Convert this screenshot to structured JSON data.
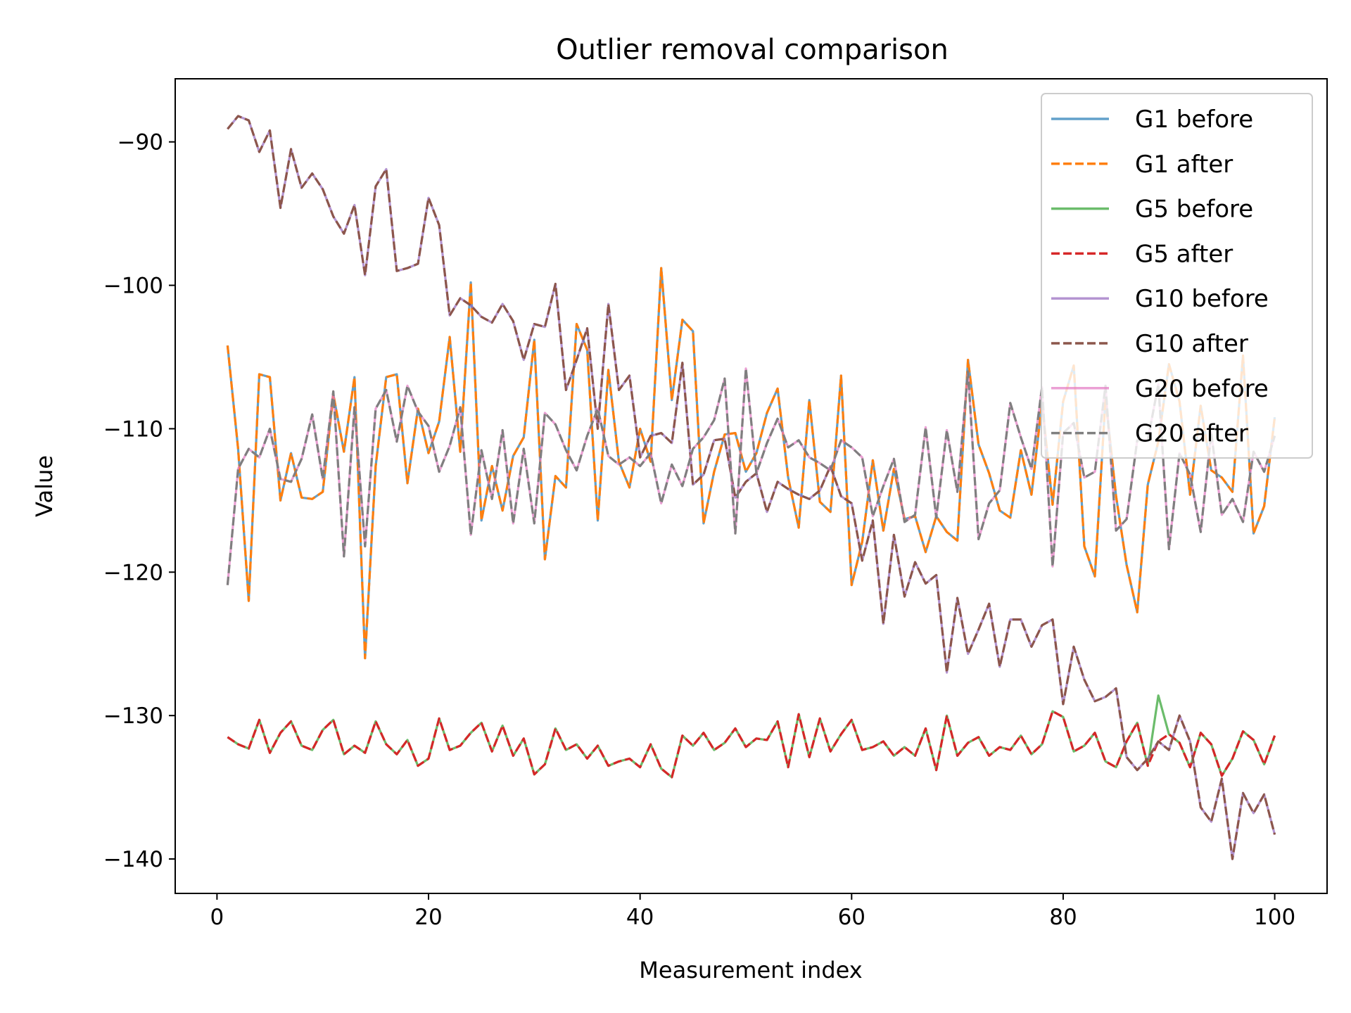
{
  "chart_data": {
    "type": "line",
    "title": "Outlier removal comparison",
    "xlabel": "Measurement index",
    "ylabel": "Value",
    "xlim": [
      -3.95,
      104.95
    ],
    "ylim": [
      -142.4,
      -85.6
    ],
    "xticks": [
      0,
      20,
      40,
      60,
      80,
      100
    ],
    "yticks": [
      -90,
      -100,
      -110,
      -120,
      -130,
      -140
    ],
    "tick_labels_x": [
      "0",
      "20",
      "40",
      "60",
      "80",
      "100"
    ],
    "tick_labels_y": [
      "−90",
      "−100",
      "−110",
      "−120",
      "−130",
      "−140"
    ],
    "grid": false,
    "legend_position": "top-right",
    "x": [
      1,
      2,
      3,
      4,
      5,
      6,
      7,
      8,
      9,
      10,
      11,
      12,
      13,
      14,
      15,
      16,
      17,
      18,
      19,
      20,
      21,
      22,
      23,
      24,
      25,
      26,
      27,
      28,
      29,
      30,
      31,
      32,
      33,
      34,
      35,
      36,
      37,
      38,
      39,
      40,
      41,
      42,
      43,
      44,
      45,
      46,
      47,
      48,
      49,
      50,
      51,
      52,
      53,
      54,
      55,
      56,
      57,
      58,
      59,
      60,
      61,
      62,
      63,
      64,
      65,
      66,
      67,
      68,
      69,
      70,
      71,
      72,
      73,
      74,
      75,
      76,
      77,
      78,
      79,
      80,
      81,
      82,
      83,
      84,
      85,
      86,
      87,
      88,
      89,
      90,
      91,
      92,
      93,
      94,
      95,
      96,
      97,
      98,
      99,
      100
    ],
    "series": [
      {
        "name": "G1 before",
        "color": "#1f77b4",
        "dash": "solid",
        "alpha": 0.7,
        "values": [
          -104.2,
          -111.4,
          -122.0,
          -106.2,
          -106.4,
          -115.0,
          -111.7,
          -114.8,
          -114.9,
          -114.4,
          -107.6,
          -111.6,
          -106.4,
          -126.0,
          -112.6,
          -106.4,
          -106.2,
          -113.8,
          -108.6,
          -111.7,
          -109.5,
          -103.6,
          -111.6,
          -99.8,
          -116.4,
          -112.6,
          -115.7,
          -111.9,
          -110.6,
          -103.8,
          -119.1,
          -113.3,
          -114.1,
          -102.7,
          -104.5,
          -116.4,
          -105.9,
          -112.3,
          -114.1,
          -110.0,
          -112.3,
          -98.8,
          -108.0,
          -102.4,
          -103.2,
          -116.6,
          -113.0,
          -110.4,
          -110.3,
          -113.0,
          -111.7,
          -108.9,
          -107.2,
          -113.4,
          -116.9,
          -108.0,
          -115.1,
          -115.8,
          -106.3,
          -120.9,
          -117.9,
          -112.2,
          -117.1,
          -112.8,
          -116.3,
          -116.1,
          -118.6,
          -116.1,
          -117.2,
          -117.8,
          -105.2,
          -111.1,
          -113.1,
          -115.7,
          -116.2,
          -111.5,
          -114.6,
          -108.2,
          -115.3,
          -108.1,
          -105.6,
          -118.2,
          -120.3,
          -107.9,
          -114.7,
          -119.5,
          -122.8,
          -113.9,
          -110.9,
          -105.5,
          -108.1,
          -114.6,
          -108.4,
          -112.9,
          -113.4,
          -114.4,
          -104.9,
          -117.3,
          -115.4,
          -109.2
        ]
      },
      {
        "name": "G1 after",
        "color": "#ff7f0e",
        "dash": "dashed",
        "alpha": 1,
        "values": [
          -104.2,
          -111.4,
          -122.0,
          -106.2,
          -106.4,
          -115.0,
          -111.7,
          -114.8,
          -114.9,
          -114.4,
          -107.6,
          -111.6,
          -106.4,
          -126.0,
          -112.6,
          -106.4,
          -106.2,
          -113.8,
          -108.6,
          -111.7,
          -109.5,
          -103.6,
          -111.6,
          -99.8,
          -116.4,
          -112.6,
          -115.7,
          -111.9,
          -110.6,
          -103.8,
          -119.1,
          -113.3,
          -114.1,
          -102.7,
          -104.5,
          -116.4,
          -105.9,
          -112.3,
          -114.1,
          -110.0,
          -112.3,
          -98.8,
          -108.0,
          -102.4,
          -103.2,
          -116.6,
          -113.0,
          -110.4,
          -110.3,
          -113.0,
          -111.7,
          -108.9,
          -107.2,
          -113.4,
          -116.9,
          -108.0,
          -115.1,
          -115.8,
          -106.3,
          -120.9,
          -117.9,
          -112.2,
          -117.1,
          -112.8,
          -116.3,
          -116.1,
          -118.6,
          -116.1,
          -117.2,
          -117.8,
          -105.2,
          -111.1,
          -113.1,
          -115.7,
          -116.2,
          -111.5,
          -114.6,
          -108.2,
          -115.3,
          -108.1,
          -105.6,
          -118.2,
          -120.3,
          -107.9,
          -114.7,
          -119.5,
          -122.8,
          -113.9,
          -110.9,
          -105.5,
          -108.1,
          -114.6,
          -108.4,
          -112.9,
          -113.4,
          -114.4,
          -104.9,
          -117.3,
          -115.4,
          -109.2
        ]
      },
      {
        "name": "G5 before",
        "color": "#2ca02c",
        "dash": "solid",
        "alpha": 0.7,
        "values": [
          -131.5,
          -132.0,
          -132.3,
          -130.3,
          -132.6,
          -131.2,
          -130.4,
          -132.1,
          -132.4,
          -131.0,
          -130.3,
          -132.7,
          -132.1,
          -132.6,
          -130.4,
          -132.0,
          -132.7,
          -131.7,
          -133.5,
          -133.0,
          -130.2,
          -132.4,
          -132.1,
          -131.2,
          -130.5,
          -132.5,
          -130.7,
          -132.8,
          -131.6,
          -134.1,
          -133.4,
          -130.9,
          -132.4,
          -132.0,
          -133.0,
          -132.1,
          -133.5,
          -133.2,
          -133.0,
          -133.6,
          -132.0,
          -133.7,
          -134.3,
          -131.4,
          -132.1,
          -131.2,
          -132.4,
          -131.9,
          -130.9,
          -132.2,
          -131.6,
          -131.7,
          -130.4,
          -133.6,
          -129.9,
          -132.9,
          -130.2,
          -132.5,
          -131.3,
          -130.3,
          -132.4,
          -132.2,
          -131.8,
          -132.8,
          -132.2,
          -132.8,
          -130.9,
          -133.8,
          -130.0,
          -132.8,
          -131.9,
          -131.5,
          -132.8,
          -132.2,
          -132.4,
          -131.4,
          -132.7,
          -132.0,
          -129.7,
          -130.1,
          -132.5,
          -132.1,
          -131.2,
          -133.2,
          -133.6,
          -131.8,
          -130.5,
          -133.5,
          -128.6,
          -131.3,
          -131.9,
          -133.6,
          -131.2,
          -132.0,
          -134.2,
          -133.0,
          -131.1,
          -131.7,
          -133.4,
          -131.4
        ]
      },
      {
        "name": "G5 after",
        "color": "#d62728",
        "dash": "dashed",
        "alpha": 1,
        "values": [
          -131.5,
          -132.0,
          -132.3,
          -130.3,
          -132.6,
          -131.2,
          -130.4,
          -132.1,
          -132.4,
          -131.0,
          -130.3,
          -132.7,
          -132.1,
          -132.6,
          -130.4,
          -132.0,
          -132.7,
          -131.7,
          -133.5,
          -133.0,
          -130.2,
          -132.4,
          -132.1,
          -131.2,
          -130.5,
          -132.5,
          -130.7,
          -132.8,
          -131.6,
          -134.1,
          -133.4,
          -130.9,
          -132.4,
          -132.0,
          -133.0,
          -132.1,
          -133.5,
          -133.2,
          -133.0,
          -133.6,
          -132.0,
          -133.7,
          -134.3,
          -131.4,
          -132.1,
          -131.2,
          -132.4,
          -131.9,
          -130.9,
          -132.2,
          -131.6,
          -131.7,
          -130.4,
          -133.6,
          -129.9,
          -132.9,
          -130.2,
          -132.5,
          -131.3,
          -130.3,
          -132.4,
          -132.2,
          -131.8,
          -132.8,
          -132.2,
          -132.8,
          -130.9,
          -133.8,
          -130.0,
          -132.8,
          -131.9,
          -131.5,
          -132.8,
          -132.2,
          -132.4,
          -131.4,
          -132.7,
          -132.0,
          -129.7,
          -130.1,
          -132.5,
          -132.1,
          -131.2,
          -133.2,
          -133.6,
          -131.8,
          -130.5,
          -133.5,
          -131.8,
          -131.3,
          -131.9,
          -133.6,
          -131.2,
          -132.0,
          -134.2,
          -133.0,
          -131.1,
          -131.7,
          -133.4,
          -131.4
        ]
      },
      {
        "name": "G10 before",
        "color": "#9467bd",
        "dash": "solid",
        "alpha": 0.7,
        "values": [
          -89.1,
          -88.2,
          -88.5,
          -90.7,
          -89.2,
          -94.6,
          -90.5,
          -93.2,
          -92.2,
          -93.3,
          -95.2,
          -96.4,
          -94.4,
          -99.3,
          -93.1,
          -91.9,
          -99.0,
          -98.8,
          -98.5,
          -93.9,
          -95.8,
          -102.1,
          -100.9,
          -101.4,
          -102.2,
          -102.6,
          -101.3,
          -102.5,
          -105.2,
          -102.7,
          -102.9,
          -99.9,
          -107.3,
          -105.2,
          -103.0,
          -110.0,
          -101.3,
          -107.3,
          -106.3,
          -112.0,
          -110.5,
          -110.3,
          -111.0,
          -105.4,
          -113.9,
          -113.2,
          -110.8,
          -110.7,
          -114.8,
          -113.7,
          -113.1,
          -115.8,
          -113.7,
          -114.2,
          -114.6,
          -114.9,
          -114.3,
          -112.6,
          -114.7,
          -115.2,
          -119.2,
          -116.4,
          -123.6,
          -117.4,
          -121.7,
          -119.3,
          -120.8,
          -120.2,
          -127.0,
          -121.8,
          -125.7,
          -124.0,
          -122.2,
          -126.6,
          -123.3,
          -123.3,
          -125.2,
          -123.7,
          -123.3,
          -129.2,
          -125.2,
          -127.5,
          -129.0,
          -128.7,
          -128.1,
          -132.9,
          -133.8,
          -133.0,
          -131.8,
          -132.4,
          -130.0,
          -131.8,
          -136.4,
          -137.4,
          -134.4,
          -140.0,
          -135.4,
          -136.8,
          -135.5,
          -138.3
        ]
      },
      {
        "name": "G10 after",
        "color": "#8c564b",
        "dash": "dashed",
        "alpha": 1,
        "values": [
          -89.1,
          -88.2,
          -88.5,
          -90.7,
          -89.2,
          -94.6,
          -90.5,
          -93.2,
          -92.2,
          -93.3,
          -95.2,
          -96.4,
          -94.4,
          -99.3,
          -93.1,
          -91.9,
          -99.0,
          -98.8,
          -98.5,
          -93.9,
          -95.8,
          -102.1,
          -100.9,
          -101.4,
          -102.2,
          -102.6,
          -101.3,
          -102.5,
          -105.2,
          -102.7,
          -102.9,
          -99.9,
          -107.3,
          -105.2,
          -103.0,
          -110.0,
          -101.3,
          -107.3,
          -106.3,
          -112.0,
          -110.5,
          -110.3,
          -111.0,
          -105.4,
          -113.9,
          -113.2,
          -110.8,
          -110.7,
          -114.8,
          -113.7,
          -113.1,
          -115.8,
          -113.7,
          -114.2,
          -114.6,
          -114.9,
          -114.3,
          -112.6,
          -114.7,
          -115.2,
          -119.2,
          -116.4,
          -123.6,
          -117.4,
          -121.7,
          -119.3,
          -120.8,
          -120.2,
          -127.0,
          -121.8,
          -125.7,
          -124.0,
          -122.2,
          -126.6,
          -123.3,
          -123.3,
          -125.2,
          -123.7,
          -123.3,
          -129.2,
          -125.2,
          -127.5,
          -129.0,
          -128.7,
          -128.1,
          -132.9,
          -133.8,
          -133.0,
          -131.8,
          -132.4,
          -130.0,
          -131.8,
          -136.4,
          -137.4,
          -134.4,
          -140.0,
          -135.4,
          -136.8,
          -135.5,
          -138.3
        ]
      },
      {
        "name": "G20 before",
        "color": "#e377c2",
        "dash": "solid",
        "alpha": 0.7,
        "values": [
          -120.9,
          -112.8,
          -111.4,
          -112.0,
          -110.0,
          -113.5,
          -113.7,
          -112.1,
          -109.0,
          -113.5,
          -107.4,
          -118.9,
          -108.5,
          -118.2,
          -108.6,
          -107.3,
          -110.9,
          -107.0,
          -108.8,
          -109.8,
          -113.0,
          -111.2,
          -108.5,
          -117.4,
          -111.5,
          -114.9,
          -110.1,
          -116.6,
          -111.4,
          -116.6,
          -108.9,
          -109.7,
          -111.5,
          -112.9,
          -110.5,
          -108.6,
          -111.9,
          -112.5,
          -112.0,
          -112.6,
          -111.7,
          -115.2,
          -112.5,
          -114.0,
          -111.4,
          -110.6,
          -109.4,
          -106.5,
          -117.3,
          -105.8,
          -113.1,
          -111.0,
          -109.3,
          -111.3,
          -110.8,
          -112.0,
          -112.4,
          -112.9,
          -110.8,
          -111.3,
          -112.0,
          -116.1,
          -114.0,
          -112.1,
          -116.5,
          -116.0,
          -109.9,
          -116.2,
          -110.1,
          -114.4,
          -106.0,
          -117.7,
          -115.2,
          -114.3,
          -108.2,
          -110.6,
          -112.8,
          -107.1,
          -119.6,
          -110.3,
          -109.6,
          -113.4,
          -113.0,
          -107.0,
          -117.1,
          -116.3,
          -110.8,
          -110.8,
          -106.9,
          -118.4,
          -111.7,
          -113.2,
          -117.2,
          -110.3,
          -116.0,
          -114.9,
          -116.5,
          -111.6,
          -113.0,
          -110.5
        ]
      },
      {
        "name": "G20 after",
        "color": "#7f7f7f",
        "dash": "dashed",
        "alpha": 1,
        "values": [
          -120.9,
          -112.8,
          -111.4,
          -112.0,
          -110.0,
          -113.5,
          -113.7,
          -112.1,
          -109.0,
          -113.5,
          -107.4,
          -118.9,
          -108.5,
          -118.2,
          -108.6,
          -107.3,
          -110.9,
          -107.0,
          -108.8,
          -109.8,
          -113.0,
          -111.2,
          -108.5,
          -117.4,
          -111.5,
          -114.9,
          -110.1,
          -116.6,
          -111.4,
          -116.6,
          -108.9,
          -109.7,
          -111.5,
          -112.9,
          -110.5,
          -108.6,
          -111.9,
          -112.5,
          -112.0,
          -112.6,
          -111.7,
          -115.2,
          -112.5,
          -114.0,
          -111.4,
          -110.6,
          -109.4,
          -106.5,
          -117.3,
          -105.8,
          -113.1,
          -111.0,
          -109.3,
          -111.3,
          -110.8,
          -112.0,
          -112.4,
          -112.9,
          -110.8,
          -111.3,
          -112.0,
          -116.1,
          -114.0,
          -112.1,
          -116.5,
          -116.0,
          -109.9,
          -116.2,
          -110.1,
          -114.4,
          -106.0,
          -117.7,
          -115.2,
          -114.3,
          -108.2,
          -110.6,
          -112.8,
          -107.1,
          -119.6,
          -110.3,
          -109.6,
          -113.4,
          -113.0,
          -107.0,
          -117.1,
          -116.3,
          -110.8,
          -110.8,
          -106.9,
          -118.4,
          -111.7,
          -113.2,
          -117.2,
          -110.3,
          -116.0,
          -114.9,
          -116.5,
          -111.6,
          -113.0,
          -110.5
        ]
      }
    ]
  }
}
